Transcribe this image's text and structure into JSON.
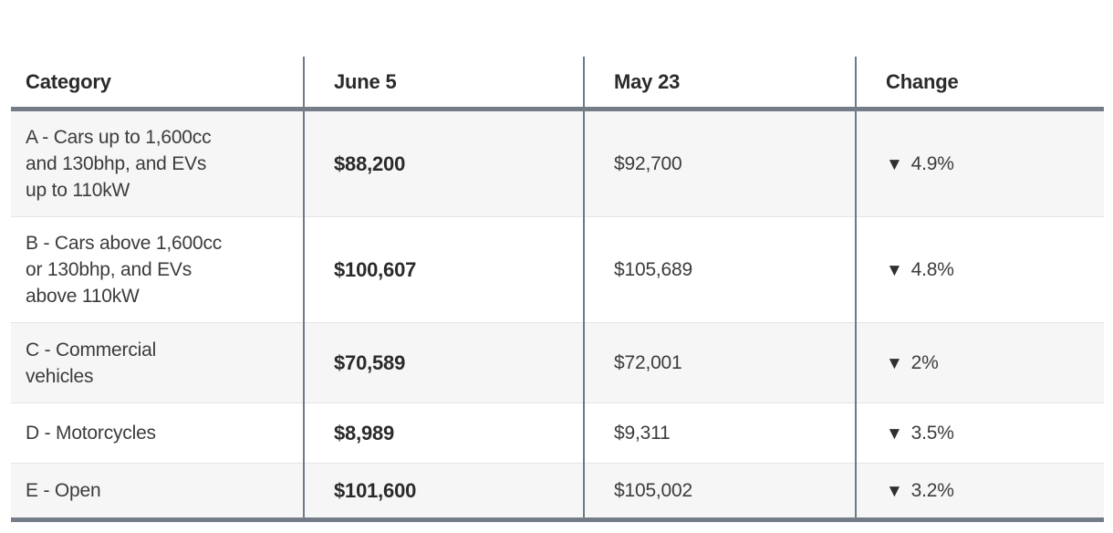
{
  "chart_data": {
    "type": "table",
    "title": "",
    "columns": [
      "Category",
      "June 5",
      "May 23",
      "Change"
    ],
    "rows": [
      {
        "category": "A - Cars up to 1,600cc\nand 130bhp, and EVs\nup to 110kW",
        "june5": "$88,200",
        "may23": "$92,700",
        "change_icon": "▼",
        "change": "4.9%"
      },
      {
        "category": "B - Cars above 1,600cc\nor 130bhp, and EVs\nabove 110kW",
        "june5": "$100,607",
        "may23": "$105,689",
        "change_icon": "▼",
        "change": "4.8%"
      },
      {
        "category": "C - Commercial\nvehicles",
        "june5": "$70,589",
        "may23": "$72,001",
        "change_icon": "▼",
        "change": "2%"
      },
      {
        "category": "D - Motorcycles",
        "june5": "$8,989",
        "may23": "$9,311",
        "change_icon": "▼",
        "change": "3.5%"
      },
      {
        "category": "E - Open",
        "june5": "$101,600",
        "may23": "$105,002",
        "change_icon": "▼",
        "change": "3.2%"
      }
    ],
    "layout": {
      "row_backgrounds": "alternating gray/white starting gray",
      "heavy_rule_color": "#747d87",
      "column_divider_color": "#6f7a86",
      "alt_row_color": "#f6f6f7",
      "thin_separator_color": "#e4e4e4"
    }
  }
}
